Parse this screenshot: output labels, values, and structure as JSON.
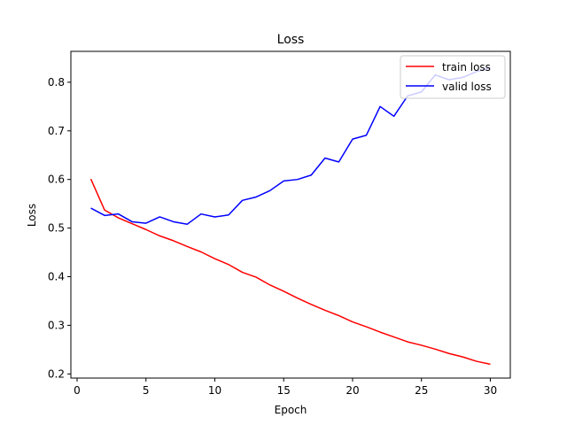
{
  "chart_data": {
    "type": "line",
    "title": "Loss",
    "xlabel": "Epoch",
    "ylabel": "Loss",
    "xlim": [
      -0.45,
      31.45
    ],
    "ylim": [
      0.1915,
      0.8635
    ],
    "x_ticks": [
      0,
      5,
      10,
      15,
      20,
      25,
      30
    ],
    "y_ticks": [
      0.2,
      0.3,
      0.4,
      0.5,
      0.6,
      0.7,
      0.8
    ],
    "grid": false,
    "legend_position": "top-right",
    "x": [
      1,
      2,
      3,
      4,
      5,
      6,
      7,
      8,
      9,
      10,
      11,
      12,
      13,
      14,
      15,
      16,
      17,
      18,
      19,
      20,
      21,
      22,
      23,
      24,
      25,
      26,
      27,
      28,
      29,
      30
    ],
    "series": [
      {
        "name": "train loss",
        "color": "#ff0000",
        "values": [
          0.601,
          0.537,
          0.521,
          0.509,
          0.497,
          0.484,
          0.474,
          0.462,
          0.451,
          0.437,
          0.425,
          0.409,
          0.399,
          0.383,
          0.37,
          0.356,
          0.343,
          0.331,
          0.32,
          0.307,
          0.297,
          0.286,
          0.276,
          0.266,
          0.259,
          0.251,
          0.242,
          0.235,
          0.226,
          0.22
        ]
      },
      {
        "name": "valid loss",
        "color": "#0000ff",
        "values": [
          0.541,
          0.526,
          0.529,
          0.513,
          0.51,
          0.523,
          0.513,
          0.508,
          0.529,
          0.523,
          0.527,
          0.557,
          0.564,
          0.577,
          0.597,
          0.6,
          0.609,
          0.644,
          0.636,
          0.683,
          0.691,
          0.75,
          0.73,
          0.772,
          0.78,
          0.815,
          0.805,
          0.81,
          0.822,
          0.83
        ]
      }
    ]
  }
}
